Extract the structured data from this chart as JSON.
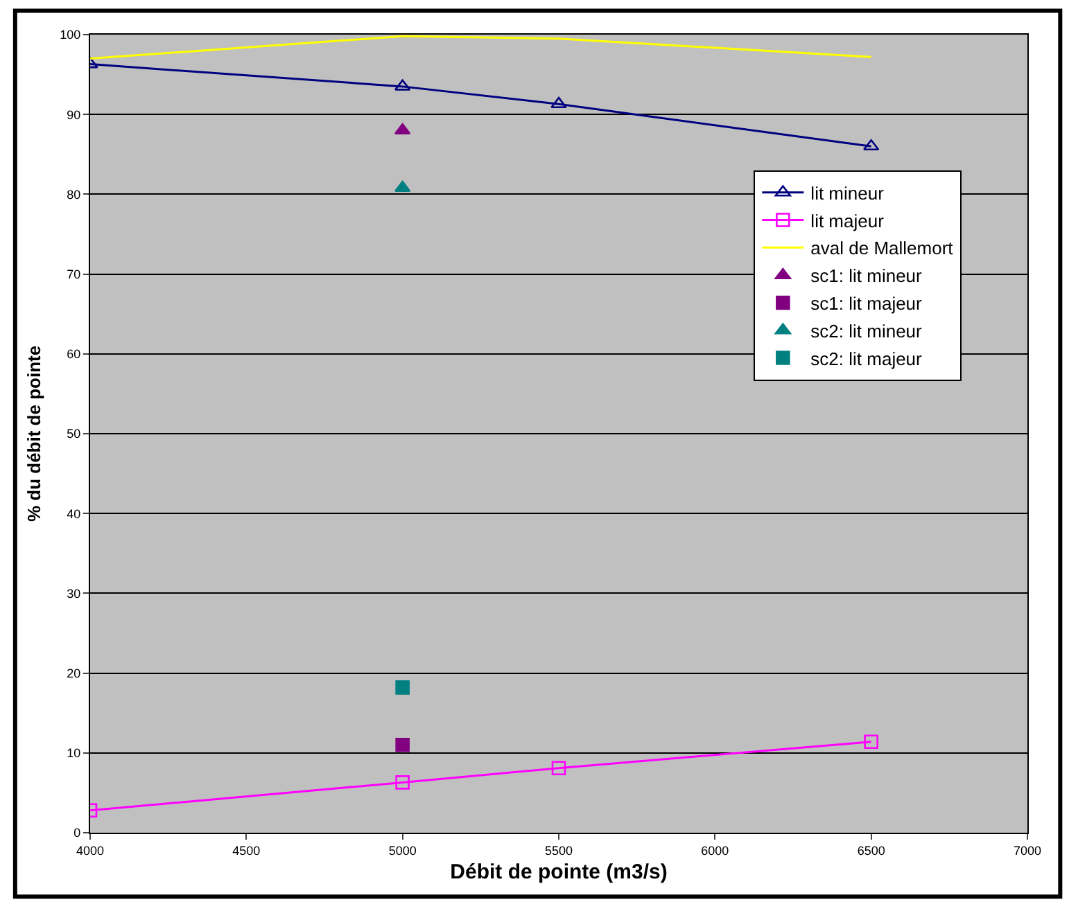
{
  "chart_data": {
    "type": "line",
    "xlabel": "Débit de pointe (m3/s)",
    "ylabel": "% du débit de pointe",
    "x": [
      4000,
      5000,
      5500,
      6500
    ],
    "series": [
      {
        "name": "lit mineur",
        "color": "#000080",
        "marker": "triangle",
        "values": [
          96.3,
          93.5,
          91.3,
          86
        ]
      },
      {
        "name": "lit majeur",
        "color": "#ff00ff",
        "marker": "square",
        "values": [
          2.8,
          6.3,
          8.1,
          11.4
        ]
      },
      {
        "name": "aval de Mallemort",
        "color": "#ffff00",
        "marker": "none",
        "values": [
          97,
          99.8,
          99.5,
          97.2
        ]
      },
      {
        "name": "sc1: lit mineur",
        "type": "scatter",
        "color": "#800080",
        "marker": "triangle",
        "values": [
          null,
          88,
          null,
          null
        ]
      },
      {
        "name": "sc1: lit majeur",
        "type": "scatter",
        "color": "#800080",
        "marker": "square",
        "values": [
          null,
          11,
          null,
          null
        ]
      },
      {
        "name": "sc2: lit mineur",
        "type": "scatter",
        "color": "#008080",
        "marker": "triangle",
        "values": [
          null,
          80.8,
          null,
          null
        ]
      },
      {
        "name": "sc2: lit majeur",
        "type": "scatter",
        "color": "#008080",
        "marker": "square",
        "values": [
          null,
          18.2,
          null,
          null
        ]
      }
    ],
    "xlim": [
      4000,
      7000
    ],
    "xticks": [
      4000,
      4500,
      5000,
      5500,
      6000,
      6500,
      7000
    ],
    "ylim": [
      0,
      100
    ],
    "yticks": [
      0,
      10,
      20,
      30,
      40,
      50,
      60,
      70,
      80,
      90,
      100
    ],
    "grid": "y",
    "legend": "top right"
  }
}
